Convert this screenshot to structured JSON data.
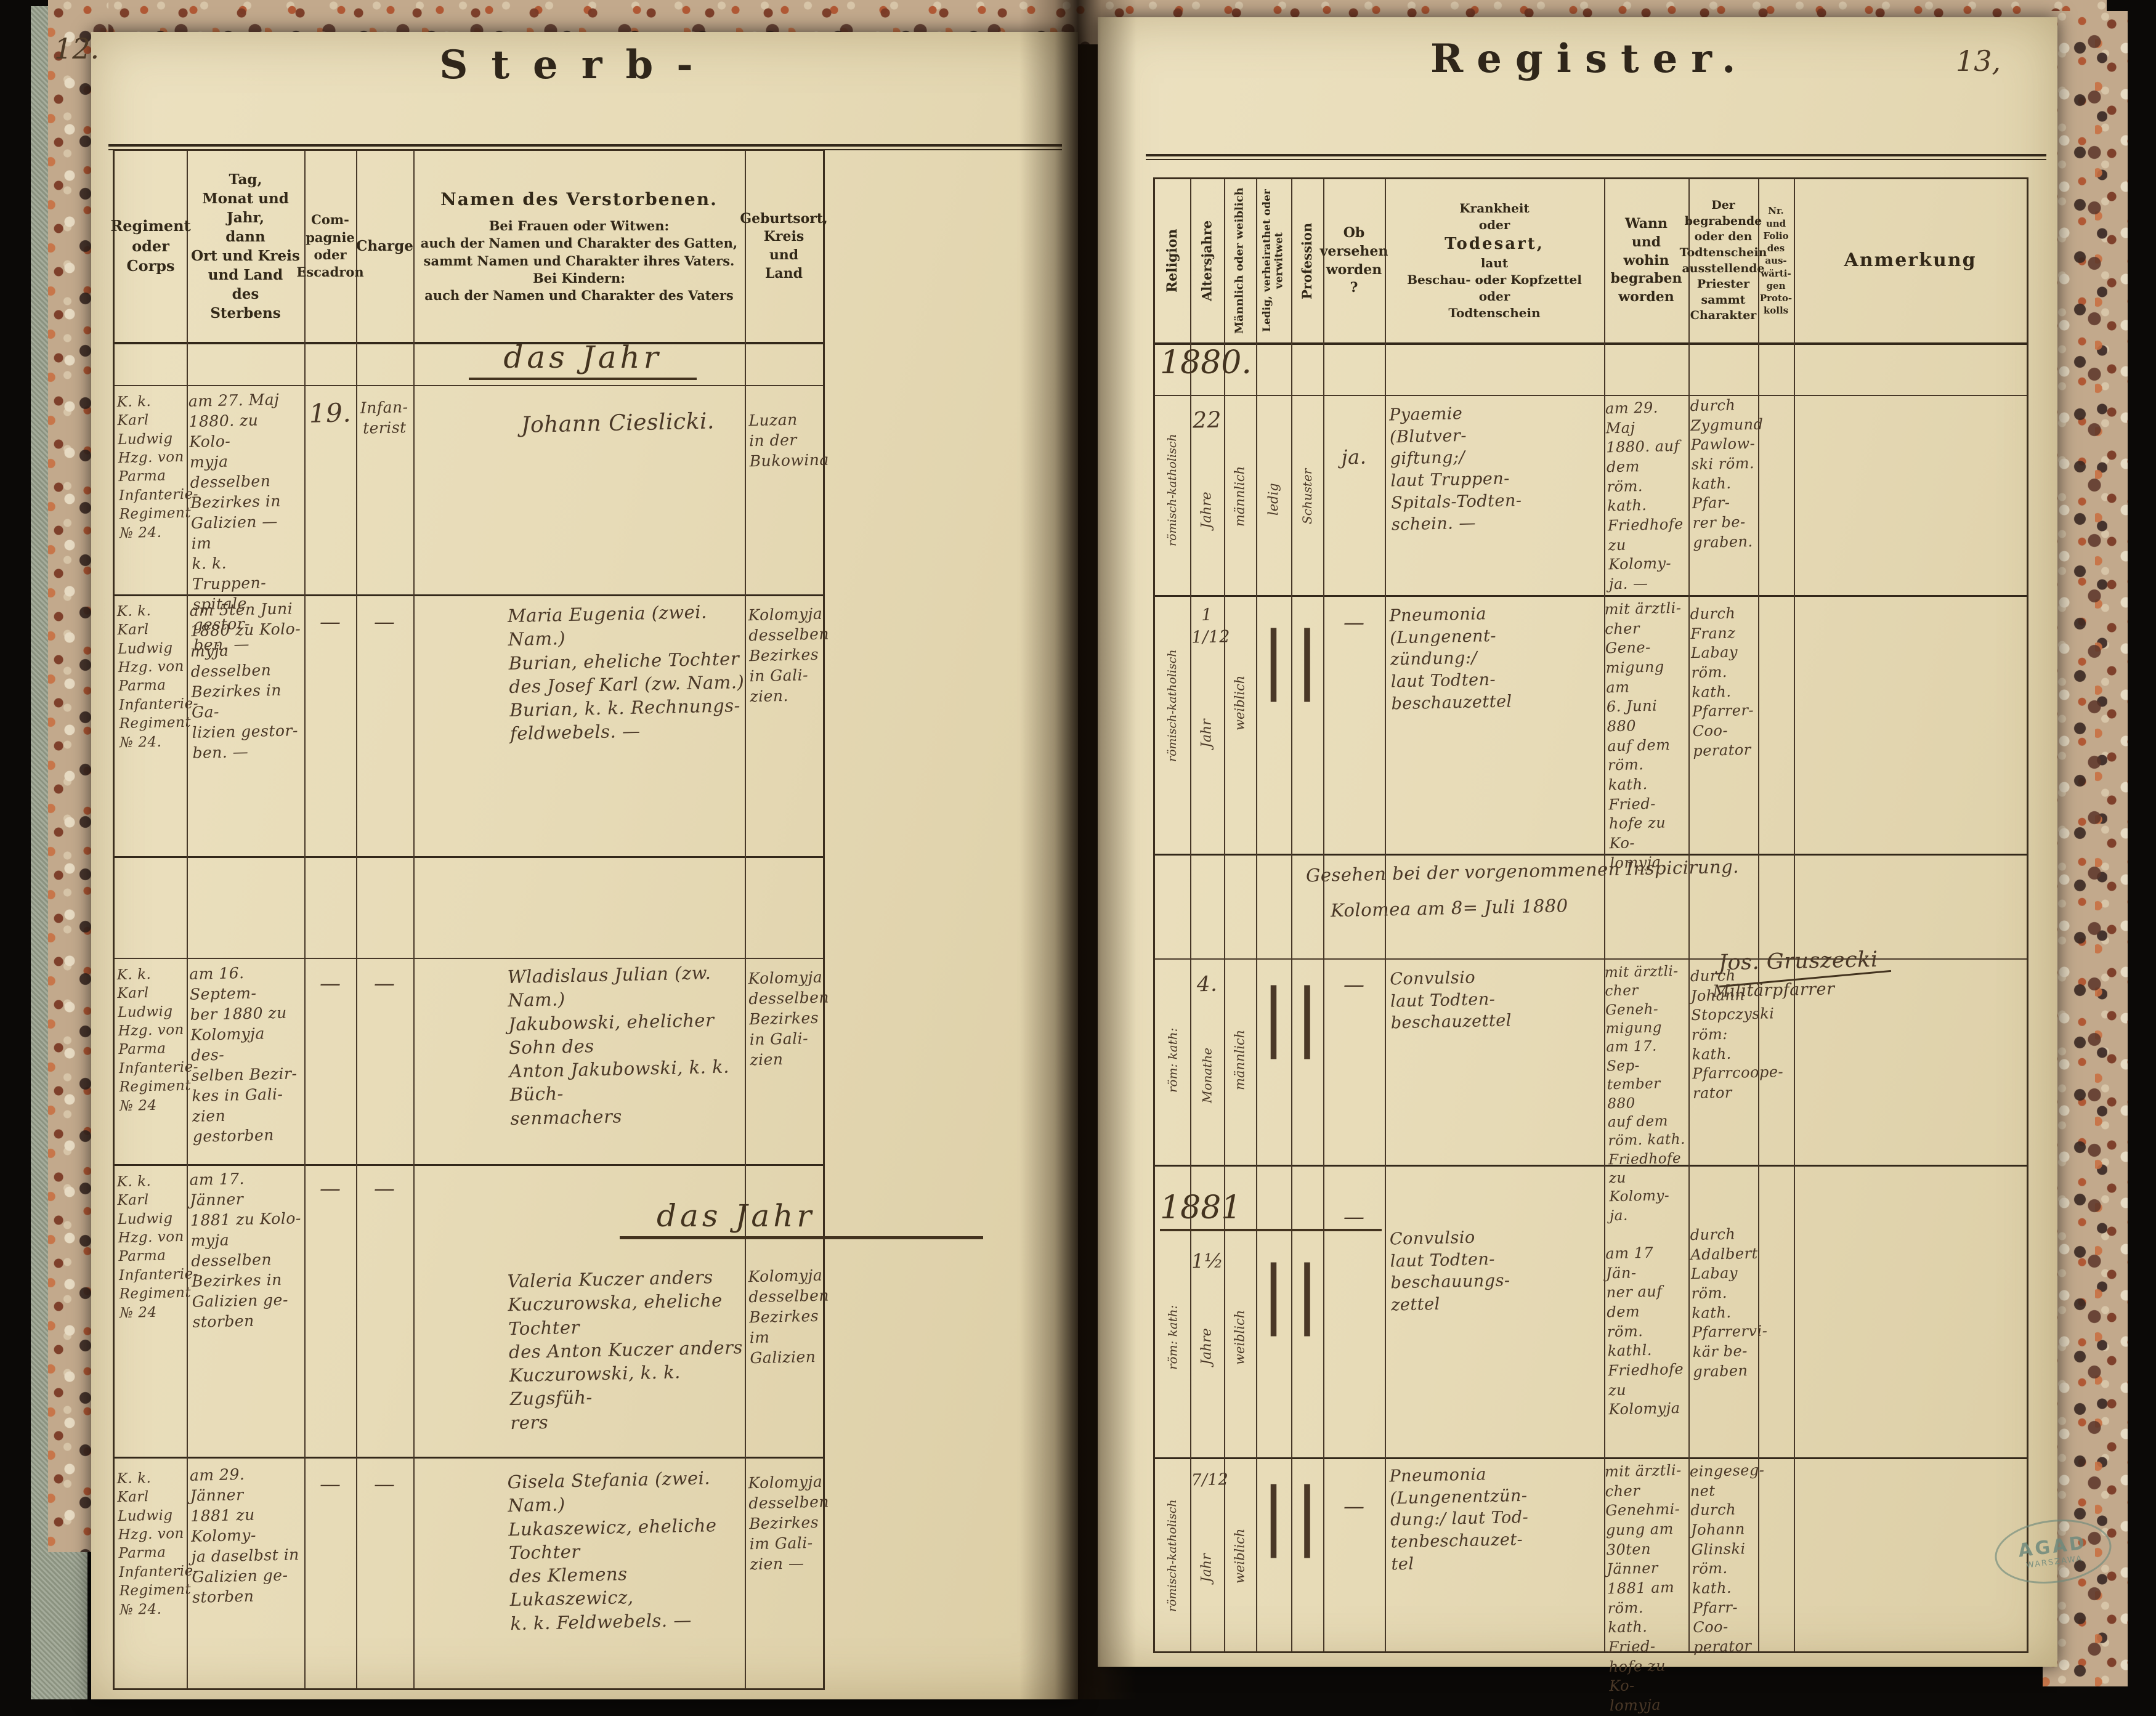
{
  "left_page": {
    "page_number": "12.",
    "title": "Sterb-",
    "headers": {
      "regiment": "Regiment\noder\nCorps",
      "date": "Tag,\nMonat und Jahr,\ndann\nOrt und Kreis\nund Land\ndes\nSterbens",
      "company": "Com-\npagnie\noder\nEscadron",
      "charge": "Charge",
      "name_title": "Namen des Verstorbenen.",
      "name_sub": "Bei Frauen oder Witwen:\nauch der Namen und Charakter des Gatten,\nsammt Namen und Charakter ihres Vaters.\nBei Kindern:\nauch der Namen und Charakter des Vaters",
      "birthplace": "Geburtsort,\nKreis\nund\nLand"
    }
  },
  "right_page": {
    "page_number": "13,",
    "title": "Register.",
    "headers": {
      "religion": "Religion",
      "age": "Altersjahre",
      "sex": "Männlich oder weiblich",
      "marital": "Ledig, verheirathet oder verwitwet",
      "profession": "Profession",
      "provided": "Ob\nversehen\nworden ?",
      "cause_top": "Krankheit\noder",
      "cause_mid": "Todesart,",
      "cause_bottom": "laut\nBeschau- oder Kopfzettel\noder\nTodtenschein",
      "burial": "Wann\nund\nwohin\nbegraben worden",
      "priest": "Der begrabende\noder den\nTodtenschein\nausstellende\nPriester\nsammt\nCharakter",
      "folio": "Nr.\nund\nFolio\ndes aus-\nwärti-\ngen\nProto-\nkolls",
      "remark": "Anmerkung"
    }
  },
  "sections": {
    "year1880_left": "das Jahr",
    "year1880_right": "1880.",
    "year1881_left": "das Jahr",
    "year1881_right": "1881"
  },
  "note": {
    "line1": "Gesehen bei der vorgenommenen Inspicirung.",
    "line2": "Kolomea am 8= Juli 1880",
    "signature": "Jos. Gruszecki",
    "signature_title": "Militärpfarrer"
  },
  "stamp": {
    "line1": "AGAD",
    "line2": "WARSZAWA"
  },
  "rows": [
    {
      "left": {
        "regiment": "K. k. Karl\nLudwig\nHzg. von\nParma\nInfanterie-\nRegiment\n№ 24.",
        "death": "am 27. Maj\n1880. zu Kolo-\nmyja desselben\nBezirkes in\nGalizien — im\nk. k. Truppen-\nspitale gestor-\nben. —",
        "company": "19.",
        "charge": "Infan-\nterist",
        "name": "Johann Cieslicki.",
        "birthplace": "Luzan\nin der\nBukowina"
      },
      "right": {
        "religion": "römisch-katholisch",
        "age": "22",
        "age_unit": "Jahre",
        "sex": "männlich",
        "marital": "ledig",
        "profession": "Schuster",
        "provided": "ja.",
        "cause": "Pyaemie\n(Blutver-\ngiftung;/\nlaut Truppen-\nSpitals-Todten-\nschein. —",
        "burial": "am 29. Maj\n1880. auf dem\nröm. kath.\nFriedhofe\nzu Kolomy-\nja. —",
        "priest": "durch\nZygmund\nPawlow-\nski röm.\nkath. Pfar-\nrer be-\ngraben.",
        "folio": "",
        "remark": ""
      }
    },
    {
      "left": {
        "regiment": "K. k. Karl\nLudwig\nHzg. von\nParma\nInfanterie-\nRegiment\n№ 24.",
        "death": "am 5ten Juni\n1880 zu Kolo-\nmyja desselben\nBezirkes in Ga-\nlizien gestor-\nben. —",
        "company": "—",
        "charge": "—",
        "name": "Maria Eugenia (zwei. Nam.)\nBurian, eheliche Tochter\ndes Josef Karl (zw. Nam.)\nBurian, k. k. Rechnungs-\nfeldwebels. —",
        "birthplace": "Kolomyja\ndesselben\nBezirkes\nin Gali-\nzien."
      },
      "right": {
        "religion": "römisch-katholisch",
        "age": "1 1/12",
        "age_unit": "Jahr",
        "sex": "weiblich",
        "marital": "|",
        "profession": "|",
        "provided": "—",
        "cause": "Pneumonia\n(Lungenent-\nzündung:/\nlaut Todten-\nbeschauzettel",
        "burial": "mit ärztli-\ncher Gene-\nmigung am\n6. Juni 880\nauf dem röm.\nkath. Fried-\nhofe zu Ko-\nlomyja.",
        "priest": "durch Franz\nLabay\nröm. kath.\nPfarrer-Coo-\nperator",
        "folio": "",
        "remark": ""
      }
    },
    {
      "left": {
        "regiment": "K. k. Karl\nLudwig\nHzg. von\nParma\nInfanterie-\nRegiment\n№ 24",
        "death": "am 16. Septem-\nber 1880 zu\nKolomyja des-\nselben Bezir-\nkes in Gali-\nzien gestorben",
        "company": "—",
        "charge": "—",
        "name": "Wladislaus Julian (zw. Nam.)\nJakubowski, ehelicher Sohn des\nAnton Jakubowski, k. k. Büch-\nsenmachers",
        "birthplace": "Kolomyja\ndesselben\nBezirkes\nin Gali-\nzien"
      },
      "right": {
        "religion": "röm: kath:",
        "age": "4.",
        "age_unit": "Monathe",
        "sex": "männlich",
        "marital": "|",
        "profession": "|",
        "provided": "—",
        "cause": "Convulsio\nlaut Todten-\nbeschauzettel",
        "burial": "mit ärztli-\ncher Geneh-\nmigung\nam 17. Sep-\ntember 880\nauf dem\nröm. kath.\nFriedhofe\nzu Kolomy-\nja.",
        "priest": "durch Johann\nStopczyski\nröm: kath.\nPfarrcoope-\nrator",
        "folio": "",
        "remark": ""
      }
    },
    {
      "left": {
        "regiment": "K. k. Karl\nLudwig\nHzg. von\nParma\nInfanterie-\nRegiment\n№ 24",
        "death": "am 17. Jänner\n1881 zu Kolo-\nmyja desselben\nBezirkes in\nGalizien ge-\nstorben",
        "company": "—",
        "charge": "—",
        "name": "Valeria Kuczer anders\nKuczurowska, eheliche Tochter\ndes Anton Kuczer anders\nKuczurowski, k. k. Zugsfüh-\nrers",
        "birthplace": "Kolomyja\ndesselben\nBezirkes\nim Galizien"
      },
      "right": {
        "religion": "röm: kath:",
        "age": "1½",
        "age_unit": "Jahre",
        "sex": "weiblich",
        "marital": "|",
        "profession": "|",
        "provided": "—",
        "cause": "Convulsio\nlaut Todten-\nbeschauungs-\nzettel",
        "burial": "am 17 Jän-\nner auf dem\nröm. kathl.\nFriedhofe\nzu Kolomyja",
        "priest": "durch\nAdalbert\nLabay\nröm. kath.\nPfarrervi-\nkär be-\ngraben",
        "folio": "",
        "remark": ""
      }
    },
    {
      "left": {
        "regiment": "K. k. Karl\nLudwig\nHzg. von\nParma\nInfanterie-\nRegiment\n№ 24.",
        "death": "am 29. Jänner\n1881 zu Kolomy-\nja daselbst in\nGalizien ge-\nstorben",
        "company": "—",
        "charge": "—",
        "name": "Gisela Stefania (zwei. Nam.)\nLukaszewicz, eheliche Tochter\ndes Klemens Lukaszewicz,\nk. k. Feldwebels. —",
        "birthplace": "Kolomyja\ndesselben\nBezirkes\nim Gali-\nzien —"
      },
      "right": {
        "religion": "römisch-katholisch",
        "age": "7/12",
        "age_unit": "Jahr",
        "sex": "weiblich",
        "marital": "|",
        "profession": "|",
        "provided": "—",
        "cause": "Pneumonia\n(Lungenentzün-\ndung:/ laut Tod-\ntenbeschauzet-\ntel",
        "burial": "mit ärztli-\ncher Genehmi-\ngung am\n30ten Jänner\n1881 am röm.\nkath. Fried-\nhofe zu Ko-\nlomyja",
        "priest": "eingeseg-\nnet durch\nJohann\nGlinski\nröm. kath.\nPfarr-Coo-\nperator",
        "folio": "",
        "remark": ""
      }
    }
  ],
  "colors": {
    "background": "#0b0907",
    "paper": "#e9dfbd",
    "handwriting_ink": "#4a3827",
    "printed_ink": "#322818",
    "table_line": "#473828",
    "stamp_green": "#6f8a7c",
    "marble_rust": "#a14f33",
    "cloth": "#99a08d"
  }
}
